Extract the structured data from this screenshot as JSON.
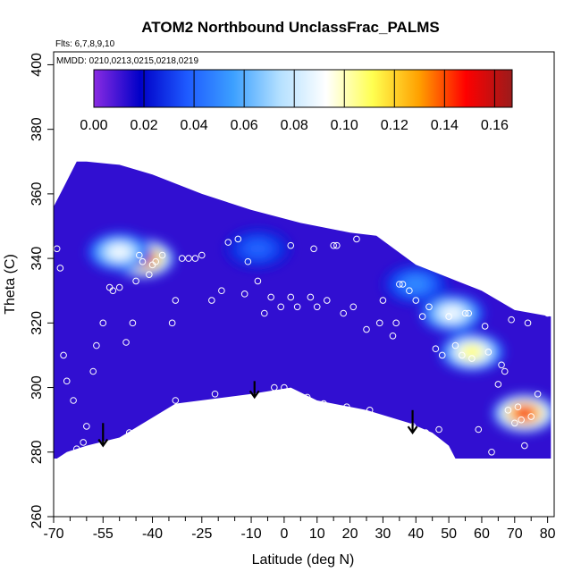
{
  "chart_data": {
    "type": "heatmap",
    "title": "ATOM2 Northbound UnclassFrac_PALMS",
    "flights_note": "Flts: 6,7,8,9,10",
    "dates_note": "MMDD: 0210,0213,0215,0218,0219",
    "xlabel": "Latitude (deg N)",
    "ylabel": "Theta (C)",
    "xlim": [
      -70,
      82
    ],
    "ylim": [
      260,
      404
    ],
    "x_ticks": [
      -70,
      -55,
      -40,
      -25,
      -10,
      0,
      10,
      20,
      30,
      40,
      50,
      60,
      70,
      80
    ],
    "x_minor_ticks": [
      -65,
      -60,
      -50,
      -45,
      -35,
      -30,
      -20,
      -15,
      -5,
      5,
      15,
      25,
      35,
      45,
      55,
      65,
      75
    ],
    "y_ticks": [
      260,
      280,
      300,
      320,
      340,
      360,
      380,
      400
    ],
    "colorbar": {
      "ticks": [
        0.0,
        0.02,
        0.04,
        0.06,
        0.08,
        0.1,
        0.12,
        0.14,
        0.16
      ],
      "tick_labels": [
        "0.00",
        "0.02",
        "0.04",
        "0.06",
        "0.08",
        "0.10",
        "0.12",
        "0.14",
        "0.16"
      ],
      "range": [
        0.0,
        0.167
      ],
      "colors": [
        "#8a2be2",
        "#0000c8",
        "#1e5aff",
        "#3ca0ff",
        "#b4e0ff",
        "#ffffff",
        "#ffff50",
        "#ffa000",
        "#ff0000",
        "#9b1b1b"
      ]
    },
    "coverage_outline": [
      [
        -69,
        278
      ],
      [
        -66,
        280
      ],
      [
        -60,
        282
      ],
      [
        -50,
        284.5
      ],
      [
        -33,
        295
      ],
      [
        -10,
        298
      ],
      [
        2,
        300
      ],
      [
        10,
        296
      ],
      [
        25,
        293
      ],
      [
        38,
        289
      ],
      [
        45,
        286
      ],
      [
        50,
        282
      ],
      [
        52,
        278
      ],
      [
        65,
        278
      ],
      [
        75,
        278
      ],
      [
        81,
        278
      ],
      [
        81,
        322
      ],
      [
        70,
        324
      ],
      [
        60,
        330
      ],
      [
        50,
        334
      ],
      [
        40,
        338
      ],
      [
        28,
        347
      ],
      [
        20,
        348
      ],
      [
        5,
        351
      ],
      [
        -10,
        355
      ],
      [
        -25,
        360
      ],
      [
        -40,
        366
      ],
      [
        -50,
        369
      ],
      [
        -60,
        370
      ],
      [
        -63,
        370
      ],
      [
        -67,
        362
      ],
      [
        -70,
        356
      ],
      [
        -70,
        278
      ]
    ],
    "hotspots": [
      {
        "lat": -43,
        "theta": 340,
        "value": 0.16
      },
      {
        "lat": -50,
        "theta": 342,
        "value": 0.09
      },
      {
        "lat": 73,
        "theta": 292,
        "value": 0.15
      },
      {
        "lat": 57,
        "theta": 311,
        "value": 0.11
      },
      {
        "lat": 51,
        "theta": 323,
        "value": 0.09
      },
      {
        "lat": 40,
        "theta": 332,
        "value": 0.05
      },
      {
        "lat": -8,
        "theta": 343,
        "value": 0.04
      }
    ],
    "samples": [
      [
        -69,
        343
      ],
      [
        -68,
        337
      ],
      [
        -67,
        310
      ],
      [
        -66,
        302
      ],
      [
        -64,
        296
      ],
      [
        -63,
        281
      ],
      [
        -61,
        283
      ],
      [
        -60,
        288
      ],
      [
        -58,
        305
      ],
      [
        -57,
        313
      ],
      [
        -55,
        320
      ],
      [
        -53,
        331
      ],
      [
        -52,
        330
      ],
      [
        -50,
        331
      ],
      [
        -48,
        314
      ],
      [
        -47,
        286
      ],
      [
        -46,
        320
      ],
      [
        -45,
        333
      ],
      [
        -44,
        341
      ],
      [
        -43,
        339
      ],
      [
        -41,
        335
      ],
      [
        -40,
        338
      ],
      [
        -39,
        339
      ],
      [
        -37,
        341
      ],
      [
        -34,
        320
      ],
      [
        -33,
        296
      ],
      [
        -33,
        327
      ],
      [
        -31,
        340
      ],
      [
        -29,
        340
      ],
      [
        -27,
        340
      ],
      [
        -25,
        341
      ],
      [
        -22,
        327
      ],
      [
        -21,
        298
      ],
      [
        -19,
        330
      ],
      [
        -17,
        345
      ],
      [
        -14,
        346
      ],
      [
        -12,
        329
      ],
      [
        -11,
        339
      ],
      [
        -8,
        333
      ],
      [
        -6,
        323
      ],
      [
        -4,
        328
      ],
      [
        -3,
        300
      ],
      [
        -1,
        325
      ],
      [
        0,
        300
      ],
      [
        2,
        328
      ],
      [
        2,
        344
      ],
      [
        4,
        325
      ],
      [
        7,
        297
      ],
      [
        8,
        328
      ],
      [
        9,
        343
      ],
      [
        10,
        325
      ],
      [
        12,
        295
      ],
      [
        13,
        327
      ],
      [
        15,
        344
      ],
      [
        16,
        344
      ],
      [
        18,
        323
      ],
      [
        19,
        294
      ],
      [
        21,
        325
      ],
      [
        22,
        346
      ],
      [
        25,
        318
      ],
      [
        26,
        293
      ],
      [
        29,
        320
      ],
      [
        30,
        327
      ],
      [
        31,
        290
      ],
      [
        33,
        316
      ],
      [
        34,
        320
      ],
      [
        35,
        332
      ],
      [
        36,
        332
      ],
      [
        38,
        330
      ],
      [
        39,
        288
      ],
      [
        40,
        327
      ],
      [
        42,
        322
      ],
      [
        43,
        286
      ],
      [
        44,
        325
      ],
      [
        46,
        312
      ],
      [
        47,
        287
      ],
      [
        48,
        310
      ],
      [
        50,
        322
      ],
      [
        52,
        313
      ],
      [
        54,
        310
      ],
      [
        55,
        323
      ],
      [
        56,
        323
      ],
      [
        57,
        309
      ],
      [
        59,
        287
      ],
      [
        61,
        319
      ],
      [
        62,
        311
      ],
      [
        63,
        280
      ],
      [
        65,
        301
      ],
      [
        66,
        307
      ],
      [
        67,
        305
      ],
      [
        68,
        293
      ],
      [
        69,
        321
      ],
      [
        70,
        289
      ],
      [
        71,
        294
      ],
      [
        72,
        290
      ],
      [
        73,
        282
      ],
      [
        74,
        320
      ],
      [
        75,
        291
      ],
      [
        77,
        298
      ],
      [
        80,
        323
      ]
    ],
    "arrows": [
      {
        "lat": -55,
        "theta_top": 289,
        "theta_tip": 282
      },
      {
        "lat": -9,
        "theta_top": 302,
        "theta_tip": 297
      },
      {
        "lat": 39,
        "theta_top": 293,
        "theta_tip": 286
      }
    ]
  }
}
